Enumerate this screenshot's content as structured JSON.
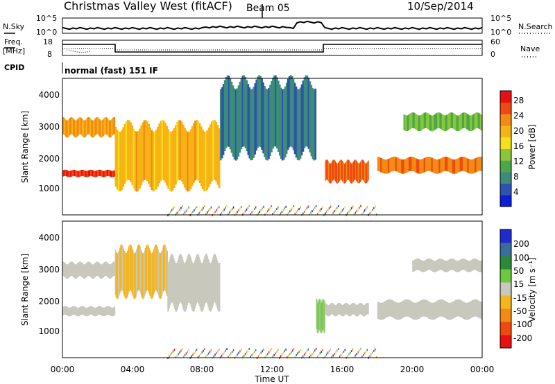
{
  "header": {
    "title": "Christmas Valley West (fitACF)",
    "beam": "Beam 05",
    "date": "10/Sep/2014"
  },
  "summary_panels": {
    "nsky_label": "N.Sky",
    "nsky_ticks": [
      "10^5",
      "10^0"
    ],
    "nsearch_label": "N.Search",
    "nsearch_ticks": [
      "10^5",
      "10^0"
    ],
    "freq_label_1": "Freq.",
    "freq_label_2": "[MHz]",
    "freq_ticks": [
      "18",
      "8"
    ],
    "nave_label": "Nave",
    "nave_ticks": [
      "60",
      "0"
    ],
    "cpid_label": "CPID",
    "cpid_text": "normal (fast) 151 IF"
  },
  "power_panel": {
    "ylabel": "Slant Range [km]",
    "yticks": [
      "4000",
      "3000",
      "2000",
      "1000"
    ],
    "colorbar_label": "Power [dB]",
    "colorbar_ticks": [
      "28",
      "24",
      "20",
      "16",
      "12",
      "8",
      "4"
    ],
    "colors": [
      "#0a1fd8",
      "#2f52b0",
      "#3d8c7a",
      "#4aa84a",
      "#8bc63a",
      "#f5e020",
      "#f7b316",
      "#f28a14",
      "#ee4a10",
      "#e81010"
    ]
  },
  "velocity_panel": {
    "ylabel": "Slant Range [km]",
    "yticks": [
      "4000",
      "3000",
      "2000",
      "1000"
    ],
    "colorbar_label": "Velocity [m s⁻¹]",
    "colorbar_ticks": [
      "200",
      "100",
      "50",
      "15",
      "-15",
      "-50",
      "-100",
      "-200"
    ],
    "colors": [
      "#1f2bcc",
      "#3a6c9c",
      "#2a8a3a",
      "#6cc83c",
      "#c8c8bc",
      "#f5b51c",
      "#f28a14",
      "#ee4a10",
      "#e81010"
    ]
  },
  "xaxis": {
    "label": "Time UT",
    "ticks": [
      "00:00",
      "04:00",
      "08:00",
      "12:00",
      "16:00",
      "20:00",
      "00:00"
    ]
  },
  "chart_data": [
    {
      "type": "heatmap",
      "title": "Power",
      "ylabel": "Slant Range [km]",
      "xlabel": "Time UT",
      "xlim_hours": [
        0,
        24
      ],
      "ylim": [
        180,
        4500
      ],
      "colorbar": {
        "label": "Power [dB]",
        "range": [
          0,
          30
        ]
      },
      "echo_bands": [
        {
          "start_h": 0.0,
          "end_h": 3.0,
          "range_km": [
            1380,
            1600
          ],
          "power_db": 28
        },
        {
          "start_h": 0.0,
          "end_h": 3.0,
          "range_km": [
            2650,
            3250
          ],
          "power_db": 22
        },
        {
          "start_h": 3.0,
          "end_h": 9.0,
          "range_km": [
            1000,
            3100
          ],
          "power_db": 20
        },
        {
          "start_h": 9.0,
          "end_h": 14.5,
          "range_km": [
            2000,
            4500
          ],
          "power_db": 6
        },
        {
          "start_h": 15.0,
          "end_h": 17.5,
          "range_km": [
            1200,
            1900
          ],
          "power_db": 26
        },
        {
          "start_h": 18.0,
          "end_h": 24.0,
          "range_km": [
            1500,
            2000
          ],
          "power_db": 24
        },
        {
          "start_h": 19.5,
          "end_h": 24.0,
          "range_km": [
            2850,
            3400
          ],
          "power_db": 12
        }
      ]
    },
    {
      "type": "heatmap",
      "title": "Velocity",
      "ylabel": "Slant Range [km]",
      "xlabel": "Time UT",
      "xlim_hours": [
        0,
        24
      ],
      "ylim": [
        180,
        4500
      ],
      "colorbar": {
        "label": "Velocity [m s⁻¹]",
        "range": [
          -200,
          200
        ]
      },
      "echo_bands": [
        {
          "start_h": 0.0,
          "end_h": 3.0,
          "range_km": [
            1500,
            1800
          ],
          "velocity": 0
        },
        {
          "start_h": 0.0,
          "end_h": 3.0,
          "range_km": [
            2700,
            3200
          ],
          "velocity": 0
        },
        {
          "start_h": 3.0,
          "end_h": 6.0,
          "range_km": [
            2100,
            3700
          ],
          "velocity": -40
        },
        {
          "start_h": 6.0,
          "end_h": 9.0,
          "range_km": [
            1700,
            3400
          ],
          "velocity": 0
        },
        {
          "start_h": 14.5,
          "end_h": 15.0,
          "range_km": [
            1000,
            2000
          ],
          "velocity": 40
        },
        {
          "start_h": 15.0,
          "end_h": 17.5,
          "range_km": [
            1500,
            1900
          ],
          "velocity": 0
        },
        {
          "start_h": 18.0,
          "end_h": 24.0,
          "range_km": [
            1400,
            2000
          ],
          "velocity": 0
        },
        {
          "start_h": 20.0,
          "end_h": 24.0,
          "range_km": [
            2900,
            3300
          ],
          "velocity": 0
        }
      ]
    }
  ]
}
